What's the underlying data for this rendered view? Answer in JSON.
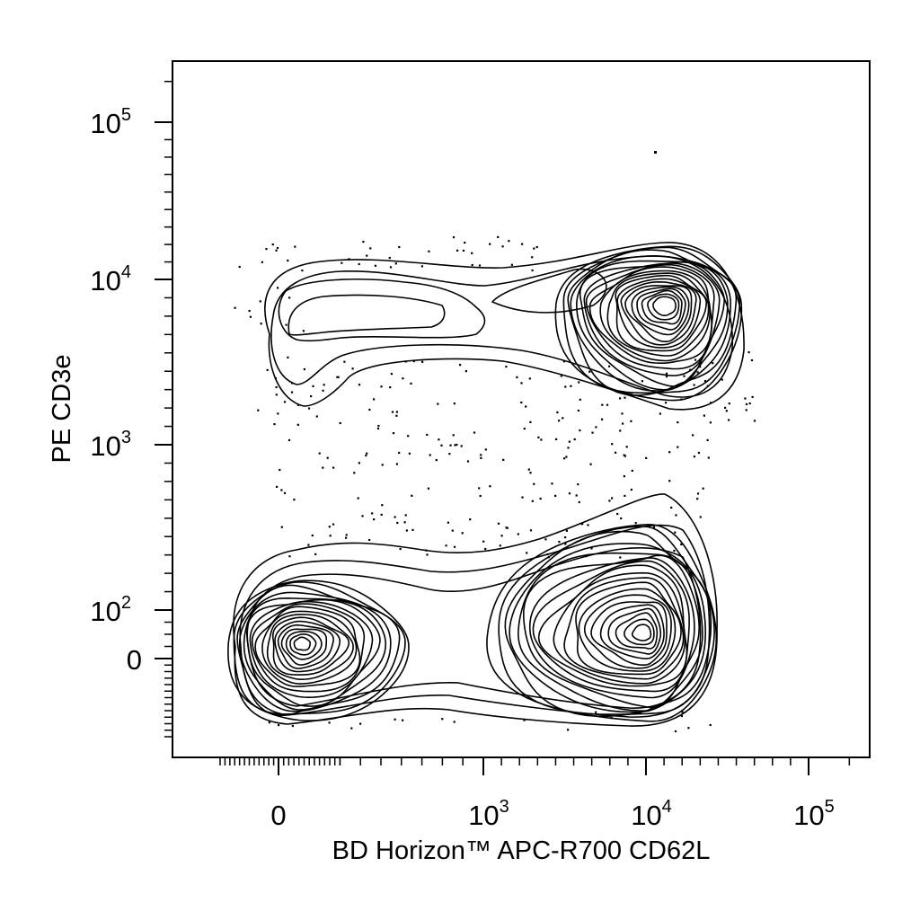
{
  "chart_data": {
    "type": "contour",
    "xlabel": "BD Horizon™ APC-R700 CD62L",
    "ylabel": "PE CD3e",
    "x_scale": "biexponential",
    "y_scale": "biexponential",
    "xlim": [
      -300,
      250000
    ],
    "ylim": [
      -300,
      250000
    ],
    "x_ticks": [
      {
        "value": 0,
        "label": "0",
        "base": "",
        "exp": ""
      },
      {
        "value": 1000,
        "label": "10^3",
        "base": "10",
        "exp": "3"
      },
      {
        "value": 10000,
        "label": "10^4",
        "base": "10",
        "exp": "4"
      },
      {
        "value": 100000,
        "label": "10^5",
        "base": "10",
        "exp": "5"
      }
    ],
    "y_ticks": [
      {
        "value": 0,
        "label": "0",
        "base": "",
        "exp": ""
      },
      {
        "value": 100,
        "label": "10^2",
        "base": "10",
        "exp": "2"
      },
      {
        "value": 1000,
        "label": "10^3",
        "base": "10",
        "exp": "3"
      },
      {
        "value": 10000,
        "label": "10^4",
        "base": "10",
        "exp": "4"
      },
      {
        "value": 100000,
        "label": "10^5",
        "base": "10",
        "exp": "5"
      }
    ],
    "populations": [
      {
        "x_center": 10000,
        "y_center": 7000,
        "x_range": [
          80,
          35000
        ],
        "y_range": [
          1700,
          16000
        ],
        "peak_density": "high"
      },
      {
        "x_center": 60,
        "y_center": 30,
        "x_range": [
          -200,
          900
        ],
        "y_range": [
          -200,
          250
        ],
        "peak_density": "high"
      },
      {
        "x_center": 9000,
        "y_center": 40,
        "x_range": [
          900,
          30000
        ],
        "y_range": [
          -200,
          500
        ],
        "peak_density": "high"
      }
    ],
    "contour_levels": 16,
    "grid": false,
    "legend": "none",
    "line_color": "#000000",
    "background_color": "#ffffff"
  }
}
